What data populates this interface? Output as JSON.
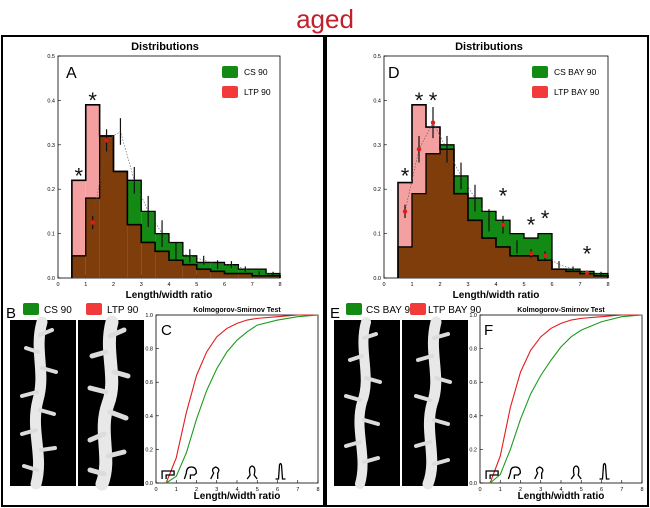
{
  "figure": {
    "title": "aged",
    "title_color": "#c0212b"
  },
  "colors": {
    "cs_green": "#138a13",
    "ltp_red": "#f23a3a",
    "overlap_brown": "#7f3d0b",
    "ltp_bar_pink": "#f4a0a0",
    "cdf_red": "#e41a1c",
    "cdf_green": "#1f9a1f",
    "star": "#111111",
    "error_bar": "#111111",
    "mean_marker": "#e01b1b"
  },
  "panels": [
    {
      "side": "left",
      "title": "Distributions",
      "letter_hist": "A",
      "letter_images": "B",
      "letter_cdf": "C",
      "image_legend": [
        "CS 90",
        "LTP 90"
      ],
      "cdf_title": "Kolmogorov-Smirnov Test",
      "cdf_xlabel": "Length/width ratio"
    },
    {
      "side": "right",
      "title": "Distributions",
      "letter_hist": "D",
      "letter_images": "E",
      "letter_cdf": "F",
      "image_legend": [
        "CS BAY 90",
        "LTP BAY 90"
      ],
      "cdf_title": "Kolmogorov-Smirnov Test",
      "cdf_xlabel": "Length/width ratio"
    }
  ],
  "chart_data": [
    {
      "type": "bar",
      "panel": "A",
      "title": "Distributions",
      "xlabel": "Length/width ratio",
      "ylabel": "",
      "xlim": [
        0,
        8
      ],
      "ylim": [
        0,
        0.5
      ],
      "xticks": [
        0,
        1,
        2,
        3,
        4,
        5,
        6,
        7,
        8
      ],
      "yticks": [
        0.0,
        0.1,
        0.2,
        0.3,
        0.4,
        0.5
      ],
      "bin_edges": [
        0.5,
        1.0,
        1.5,
        2.0,
        2.5,
        3.0,
        3.5,
        4.0,
        4.5,
        5.0,
        5.5,
        6.0,
        6.5,
        7.0,
        7.5,
        8.0
      ],
      "legend_position": "top-right",
      "series": [
        {
          "name": "CS 90",
          "values": [
            0.05,
            0.18,
            0.32,
            0.24,
            0.22,
            0.15,
            0.1,
            0.08,
            0.05,
            0.035,
            0.035,
            0.03,
            0.02,
            0.02,
            0.01
          ]
        },
        {
          "name": "LTP 90",
          "values": [
            0.22,
            0.39,
            0.32,
            0.24,
            0.12,
            0.08,
            0.06,
            0.04,
            0.03,
            0.02,
            0.015,
            0.01,
            0.01,
            0.005,
            0.005
          ]
        }
      ],
      "ltp_mean_points": {
        "x": [
          1.25,
          1.75,
          2.25,
          2.75,
          3.25,
          3.75,
          4.25,
          4.75,
          5.25,
          5.75,
          6.25,
          6.75,
          7.25,
          7.75
        ],
        "y": [
          0.125,
          0.31,
          0.33,
          0.22,
          0.15,
          0.1,
          0.06,
          0.05,
          0.04,
          0.03,
          0.03,
          0.02,
          0.01,
          0.01
        ],
        "err": [
          0.015,
          0.025,
          0.03,
          0.03,
          0.035,
          0.03,
          0.02,
          0.015,
          0.01,
          0.01,
          0.008,
          0.006,
          0.005,
          0.004
        ],
        "red_markers": [
          0,
          1
        ]
      },
      "significance_stars": [
        {
          "x": 0.75,
          "y": 0.235,
          "label": "*"
        },
        {
          "x": 1.25,
          "y": 0.405,
          "label": "*"
        }
      ]
    },
    {
      "type": "bar",
      "panel": "D",
      "title": "Distributions",
      "xlabel": "Length/width ratio",
      "ylabel": "",
      "xlim": [
        0,
        8
      ],
      "ylim": [
        0,
        0.5
      ],
      "xticks": [
        0,
        1,
        2,
        3,
        4,
        5,
        6,
        7,
        8
      ],
      "yticks": [
        0.0,
        0.1,
        0.2,
        0.3,
        0.4,
        0.5
      ],
      "bin_edges": [
        0.5,
        1.0,
        1.5,
        2.0,
        2.5,
        3.0,
        3.5,
        4.0,
        4.5,
        5.0,
        5.5,
        6.0,
        6.5,
        7.0,
        7.5,
        8.0
      ],
      "legend_position": "top-right",
      "series": [
        {
          "name": "CS BAY 90",
          "values": [
            0.07,
            0.19,
            0.28,
            0.3,
            0.23,
            0.18,
            0.15,
            0.13,
            0.1,
            0.09,
            0.1,
            0.02,
            0.02,
            0.015,
            0.01
          ]
        },
        {
          "name": "LTP BAY 90",
          "values": [
            0.215,
            0.39,
            0.34,
            0.29,
            0.19,
            0.13,
            0.09,
            0.07,
            0.05,
            0.05,
            0.04,
            0.02,
            0.015,
            0.01,
            0.005
          ]
        }
      ],
      "ltp_mean_points": {
        "x": [
          0.75,
          1.25,
          1.75,
          2.25,
          2.75,
          3.25,
          3.75,
          4.25,
          4.75,
          5.25,
          5.75,
          6.25,
          6.75,
          7.25,
          7.75
        ],
        "y": [
          0.15,
          0.29,
          0.35,
          0.29,
          0.23,
          0.18,
          0.13,
          0.12,
          0.07,
          0.055,
          0.05,
          0.03,
          0.02,
          0.012,
          0.01
        ],
        "err": [
          0.015,
          0.03,
          0.035,
          0.03,
          0.03,
          0.03,
          0.025,
          0.02,
          0.015,
          0.01,
          0.01,
          0.008,
          0.006,
          0.005,
          0.004
        ],
        "red_markers": [
          0,
          1,
          2,
          7,
          9,
          10,
          13
        ]
      },
      "significance_stars": [
        {
          "x": 0.75,
          "y": 0.235,
          "label": "*"
        },
        {
          "x": 1.25,
          "y": 0.405,
          "label": "*"
        },
        {
          "x": 1.75,
          "y": 0.405,
          "label": "*"
        },
        {
          "x": 4.25,
          "y": 0.19,
          "label": "*"
        },
        {
          "x": 5.25,
          "y": 0.125,
          "label": "*"
        },
        {
          "x": 5.75,
          "y": 0.14,
          "label": "*"
        },
        {
          "x": 7.25,
          "y": 0.06,
          "label": "*"
        }
      ]
    },
    {
      "type": "line",
      "panel": "C",
      "title": "Kolmogorov-Smirnov Test",
      "xlabel": "Length/width ratio",
      "xlim": [
        0,
        8
      ],
      "ylim": [
        0,
        1.0
      ],
      "xticks": [
        0,
        1,
        2,
        3,
        4,
        5,
        6,
        7,
        8
      ],
      "yticks": [
        0.0,
        0.2,
        0.4,
        0.6,
        0.8,
        1.0
      ],
      "series": [
        {
          "name": "LTP 90",
          "x": [
            0.5,
            1.0,
            1.5,
            2.0,
            2.5,
            3.0,
            3.5,
            4.0,
            4.5,
            5.0,
            6.0,
            7.0,
            8.0
          ],
          "y": [
            0.0,
            0.15,
            0.42,
            0.64,
            0.78,
            0.87,
            0.92,
            0.95,
            0.97,
            0.98,
            0.99,
            1.0,
            1.0
          ]
        },
        {
          "name": "CS 90",
          "x": [
            0.5,
            1.0,
            1.5,
            2.0,
            2.5,
            3.0,
            3.5,
            4.0,
            4.5,
            5.0,
            6.0,
            7.0,
            8.0
          ],
          "y": [
            0.0,
            0.04,
            0.18,
            0.38,
            0.55,
            0.68,
            0.78,
            0.85,
            0.9,
            0.94,
            0.97,
            0.99,
            1.0
          ]
        }
      ]
    },
    {
      "type": "line",
      "panel": "F",
      "title": "Kolmogorov-Smirnov Test",
      "xlabel": "Length/width ratio",
      "xlim": [
        0,
        8
      ],
      "ylim": [
        0,
        1.0
      ],
      "xticks": [
        0,
        1,
        2,
        3,
        4,
        5,
        6,
        7,
        8
      ],
      "yticks": [
        0.0,
        0.2,
        0.4,
        0.6,
        0.8,
        1.0
      ],
      "series": [
        {
          "name": "LTP BAY 90",
          "x": [
            0.5,
            1.0,
            1.5,
            2.0,
            2.5,
            3.0,
            3.5,
            4.0,
            4.5,
            5.0,
            6.0,
            7.0,
            8.0
          ],
          "y": [
            0.0,
            0.16,
            0.45,
            0.66,
            0.79,
            0.87,
            0.92,
            0.95,
            0.97,
            0.98,
            0.99,
            1.0,
            1.0
          ]
        },
        {
          "name": "CS BAY 90",
          "x": [
            0.5,
            1.0,
            1.5,
            2.0,
            2.5,
            3.0,
            3.5,
            4.0,
            4.5,
            5.0,
            6.0,
            7.0,
            8.0
          ],
          "y": [
            0.0,
            0.05,
            0.2,
            0.38,
            0.53,
            0.64,
            0.73,
            0.81,
            0.87,
            0.91,
            0.96,
            0.99,
            1.0
          ]
        }
      ]
    }
  ]
}
